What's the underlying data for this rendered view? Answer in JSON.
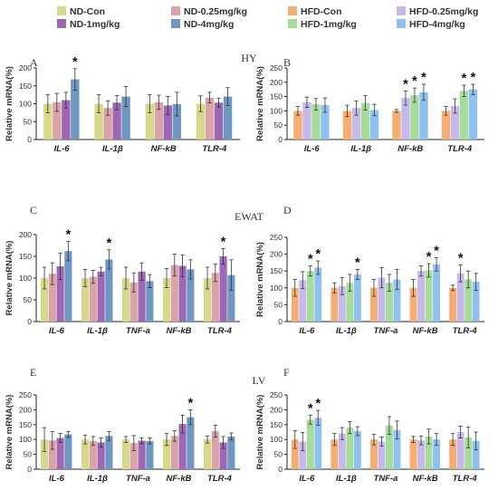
{
  "legend": [
    {
      "label": "ND-Con",
      "color": "#d7d98a"
    },
    {
      "label": "ND-0.25mg/kg",
      "color": "#d9a3a8"
    },
    {
      "label": "HFD-Con",
      "color": "#f6ad74"
    },
    {
      "label": "HFD-0.25mg/kg",
      "color": "#c6b9ea"
    },
    {
      "label": "ND-1mg/kg",
      "color": "#9d67b4"
    },
    {
      "label": "ND-4mg/kg",
      "color": "#6e97c2"
    },
    {
      "label": "HFD-1mg/kg",
      "color": "#a6dc9a"
    },
    {
      "label": "HFD-4mg/kg",
      "color": "#8fc1ef"
    }
  ],
  "tissues": {
    "hy": "HY",
    "ewat": "EWAT",
    "lv": "LV"
  },
  "chart_data": [
    {
      "panel": "A",
      "type": "bar",
      "ylabel": "Relative mRNA(%)",
      "ylim": [
        0,
        200
      ],
      "yticks": [
        0,
        50,
        100,
        150,
        200
      ],
      "categories": [
        "IL-6",
        "IL-1β",
        "NF-kB",
        "TLR-4"
      ],
      "series": [
        {
          "name": "ND-Con",
          "color": "#d7d98a",
          "values": [
            100,
            100,
            100,
            100
          ],
          "errors": [
            25,
            25,
            25,
            22
          ]
        },
        {
          "name": "ND-0.25mg/kg",
          "color": "#d9a3a8",
          "values": [
            104,
            88,
            104,
            117
          ],
          "errors": [
            25,
            20,
            20,
            15
          ]
        },
        {
          "name": "ND-1mg/kg",
          "color": "#9d67b4",
          "values": [
            110,
            103,
            95,
            103
          ],
          "errors": [
            22,
            20,
            25,
            12
          ]
        },
        {
          "name": "ND-4mg/kg",
          "color": "#6e97c2",
          "values": [
            168,
            120,
            99,
            120
          ],
          "errors": [
            30,
            28,
            33,
            25
          ]
        }
      ],
      "stars": [
        [
          0,
          3
        ]
      ],
      "star_label": "*"
    },
    {
      "panel": "B",
      "type": "bar",
      "ylabel": "Relative mRNA(%)",
      "ylim": [
        0,
        250
      ],
      "yticks": [
        0,
        50,
        100,
        150,
        200,
        250
      ],
      "categories": [
        "IL-6",
        "IL-1β",
        "NF-kB",
        "TLR-4"
      ],
      "series": [
        {
          "name": "HFD-Con",
          "color": "#f6ad74",
          "values": [
            100,
            100,
            100,
            100
          ],
          "errors": [
            15,
            20,
            5,
            15
          ]
        },
        {
          "name": "HFD-0.25mg/kg",
          "color": "#c6b9ea",
          "values": [
            130,
            110,
            145,
            117
          ],
          "errors": [
            18,
            25,
            25,
            25
          ]
        },
        {
          "name": "HFD-1mg/kg",
          "color": "#a6dc9a",
          "values": [
            123,
            128,
            155,
            170
          ],
          "errors": [
            20,
            25,
            25,
            20
          ]
        },
        {
          "name": "HFD-4mg/kg",
          "color": "#8fc1ef",
          "values": [
            120,
            103,
            165,
            175
          ],
          "errors": [
            25,
            20,
            28,
            18
          ]
        }
      ],
      "stars": [
        [
          2,
          1
        ],
        [
          2,
          2
        ],
        [
          2,
          3
        ],
        [
          3,
          2
        ],
        [
          3,
          3
        ]
      ],
      "star_label": "*"
    },
    {
      "panel": "C",
      "type": "bar",
      "ylabel": "Relative mRNA(%)",
      "ylim": [
        0,
        200
      ],
      "yticks": [
        0,
        50,
        100,
        150,
        200
      ],
      "categories": [
        "IL-6",
        "IL-1β",
        "TNF-a",
        "NF-kB",
        "TLR-4"
      ],
      "series": [
        {
          "name": "ND-Con",
          "color": "#d7d98a",
          "values": [
            100,
            100,
            100,
            100,
            100
          ],
          "errors": [
            25,
            20,
            25,
            22,
            25
          ]
        },
        {
          "name": "ND-0.25mg/kg",
          "color": "#d9a3a8",
          "values": [
            110,
            103,
            90,
            130,
            112
          ],
          "errors": [
            25,
            15,
            22,
            25,
            20
          ]
        },
        {
          "name": "ND-1mg/kg",
          "color": "#9d67b4",
          "values": [
            127,
            115,
            115,
            128,
            150
          ],
          "errors": [
            30,
            10,
            20,
            25,
            18
          ]
        },
        {
          "name": "ND-4mg/kg",
          "color": "#6e97c2",
          "values": [
            162,
            143,
            93,
            120,
            107
          ],
          "errors": [
            22,
            22,
            15,
            22,
            35
          ]
        }
      ],
      "stars": [
        [
          0,
          3
        ],
        [
          1,
          3
        ],
        [
          4,
          2
        ]
      ],
      "star_label": "*"
    },
    {
      "panel": "D",
      "type": "bar",
      "ylabel": "Relative mRNA(%)",
      "ylim": [
        0,
        250
      ],
      "yticks": [
        0,
        50,
        100,
        150,
        200,
        250
      ],
      "categories": [
        "IL-6",
        "IL-1β",
        "TNF-a",
        "NF-kB",
        "TLR-4"
      ],
      "series": [
        {
          "name": "HFD-Con",
          "color": "#f6ad74",
          "values": [
            100,
            100,
            100,
            100,
            100
          ],
          "errors": [
            25,
            15,
            25,
            25,
            8
          ]
        },
        {
          "name": "HFD-0.25mg/kg",
          "color": "#c6b9ea",
          "values": [
            123,
            105,
            130,
            150,
            143
          ],
          "errors": [
            25,
            25,
            30,
            15,
            25
          ]
        },
        {
          "name": "HFD-1mg/kg",
          "color": "#a6dc9a",
          "values": [
            150,
            115,
            115,
            152,
            125
          ],
          "errors": [
            15,
            25,
            25,
            20,
            25
          ]
        },
        {
          "name": "HFD-4mg/kg",
          "color": "#8fc1ef",
          "values": [
            160,
            140,
            125,
            170,
            118
          ],
          "errors": [
            20,
            15,
            30,
            20,
            25
          ]
        }
      ],
      "stars": [
        [
          0,
          2
        ],
        [
          0,
          3
        ],
        [
          1,
          3
        ],
        [
          3,
          2
        ],
        [
          3,
          3
        ],
        [
          4,
          1
        ]
      ],
      "star_label": "*"
    },
    {
      "panel": "E",
      "type": "bar",
      "ylabel": "Relative mRNA(%)",
      "ylim": [
        0,
        250
      ],
      "yticks": [
        0,
        50,
        100,
        150,
        200,
        250
      ],
      "categories": [
        "IL-6",
        "IL-1β",
        "TNF-a",
        "NF-kB",
        "TLR-4"
      ],
      "series": [
        {
          "name": "ND-Con",
          "color": "#d7d98a",
          "values": [
            100,
            100,
            100,
            100,
            100
          ],
          "errors": [
            40,
            15,
            10,
            20,
            12
          ]
        },
        {
          "name": "ND-0.25mg/kg",
          "color": "#d9a3a8",
          "values": [
            97,
            95,
            88,
            112,
            128
          ],
          "errors": [
            30,
            15,
            25,
            18,
            20
          ]
        },
        {
          "name": "ND-1mg/kg",
          "color": "#9d67b4",
          "values": [
            105,
            90,
            96,
            152,
            90
          ],
          "errors": [
            15,
            15,
            10,
            30,
            20
          ]
        },
        {
          "name": "ND-4mg/kg",
          "color": "#6e97c2",
          "values": [
            117,
            112,
            95,
            175,
            110
          ],
          "errors": [
            10,
            15,
            10,
            25,
            12
          ]
        }
      ],
      "stars": [
        [
          3,
          3
        ]
      ],
      "star_label": "*"
    },
    {
      "panel": "F",
      "type": "bar",
      "ylabel": "Relative mRNA(%)",
      "ylim": [
        0,
        250
      ],
      "yticks": [
        0,
        50,
        100,
        150,
        200,
        250
      ],
      "categories": [
        "IL-6",
        "IL-1β",
        "TNF-a",
        "NF-kB",
        "TLR-4"
      ],
      "series": [
        {
          "name": "HFD-Con",
          "color": "#f6ad74",
          "values": [
            100,
            100,
            100,
            100,
            100
          ],
          "errors": [
            30,
            20,
            18,
            10,
            20
          ]
        },
        {
          "name": "HFD-0.25mg/kg",
          "color": "#c6b9ea",
          "values": [
            93,
            120,
            93,
            97,
            125
          ],
          "errors": [
            30,
            20,
            15,
            15,
            20
          ]
        },
        {
          "name": "HFD-1mg/kg",
          "color": "#a6dc9a",
          "values": [
            167,
            140,
            147,
            110,
            107
          ],
          "errors": [
            15,
            20,
            30,
            25,
            35
          ]
        },
        {
          "name": "HFD-4mg/kg",
          "color": "#8fc1ef",
          "values": [
            173,
            128,
            132,
            100,
            95
          ],
          "errors": [
            25,
            15,
            30,
            20,
            30
          ]
        }
      ],
      "stars": [
        [
          0,
          2
        ],
        [
          0,
          3
        ]
      ],
      "star_label": "*"
    }
  ]
}
